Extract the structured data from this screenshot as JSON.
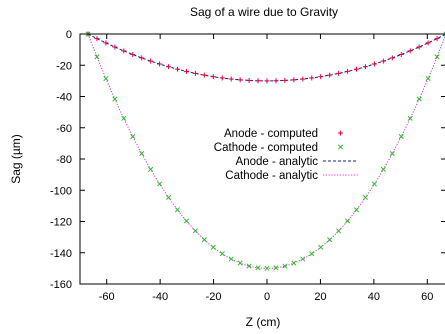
{
  "chart_data": {
    "type": "scatter",
    "title": "Sag of a wire due to Gravity",
    "xlabel": "Z (cm)",
    "ylabel": "Sag (µm)",
    "xlim": [
      -70,
      67
    ],
    "ylim": [
      -160,
      0
    ],
    "xticks": [
      -60,
      -40,
      -20,
      0,
      20,
      40,
      60
    ],
    "yticks": [
      0,
      -20,
      -40,
      -60,
      -80,
      -100,
      -120,
      -140,
      -160
    ],
    "legend_position": "center-right",
    "grid": false,
    "wire": {
      "z_min": -67,
      "z_max": 67
    },
    "series": [
      {
        "name": "Anode - computed",
        "kind": "points",
        "marker": "plus",
        "color": "#e8003a",
        "max_sag": -30
      },
      {
        "name": "Cathode - computed",
        "kind": "points",
        "marker": "cross",
        "color": "#2eb82e",
        "max_sag": -150
      },
      {
        "name": "Anode - analytic",
        "kind": "line",
        "dash": "dashed",
        "color": "#1a1a9e",
        "max_sag": -30
      },
      {
        "name": "Cathode - analytic",
        "kind": "line",
        "dash": "dotted",
        "color": "#d633d6",
        "max_sag": -150
      }
    ]
  }
}
